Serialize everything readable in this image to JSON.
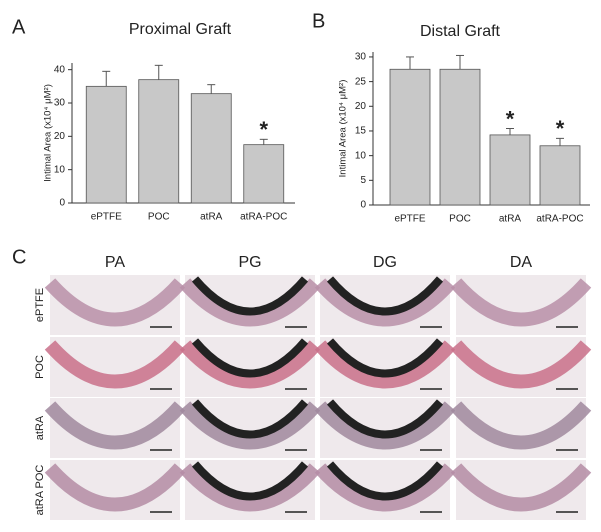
{
  "chart_data": [
    {
      "type": "bar",
      "panel": "A",
      "title": "Proximal Graft",
      "y_label": "Intimal Area (x10⁴ μM²)",
      "categories": [
        "ePTFE",
        "POC",
        "atRA",
        "atRA-POC"
      ],
      "values": [
        35,
        37,
        32.8,
        17.5
      ],
      "errors": [
        4.5,
        4.3,
        2.7,
        1.6
      ],
      "markers": [
        null,
        null,
        null,
        "*"
      ],
      "color": "#c8c8c8",
      "ylim": [
        0,
        42
      ],
      "yticks": [
        0,
        10,
        20,
        30,
        40
      ]
    },
    {
      "type": "bar",
      "panel": "B",
      "title": "Distal Graft",
      "y_label": "Intimal Area (x10⁴ μM²)",
      "categories": [
        "ePTFE",
        "POC",
        "atRA",
        "atRA-POC"
      ],
      "values": [
        27.5,
        27.5,
        14.2,
        12
      ],
      "errors": [
        2.5,
        2.8,
        1.3,
        1.5
      ],
      "markers": [
        null,
        null,
        "*",
        "*"
      ],
      "color": "#c8c8c8",
      "ylim": [
        0,
        31
      ],
      "yticks": [
        0,
        5,
        10,
        15,
        20,
        25,
        30
      ]
    }
  ],
  "panel_c": {
    "panel": "C",
    "columns": [
      "PA",
      "PG",
      "DG",
      "DA"
    ],
    "rows": [
      "ePTFE",
      "POC",
      "atRA",
      "atRA POC"
    ]
  }
}
